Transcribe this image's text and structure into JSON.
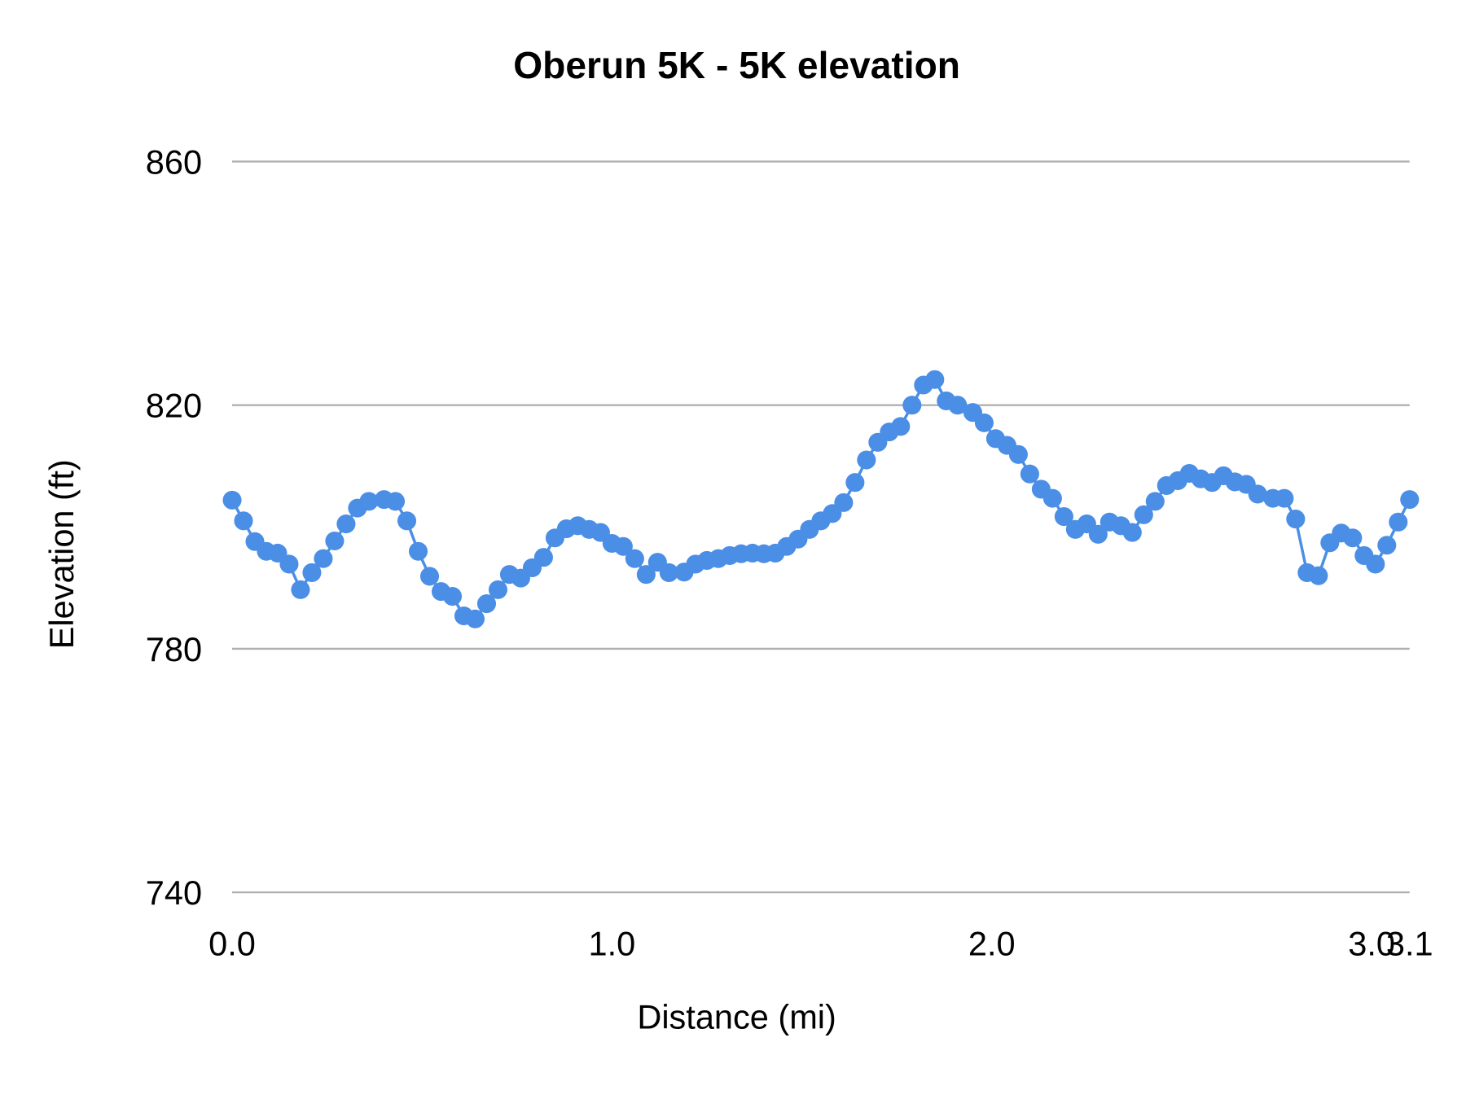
{
  "chart_data": {
    "type": "line",
    "title": "Oberun 5K - 5K elevation",
    "xlabel": "Distance (mi)",
    "ylabel": "Elevation (ft)",
    "xlim": [
      0,
      3.1
    ],
    "ylim": [
      740,
      860
    ],
    "x_ticks": [
      "0.0",
      "1.0",
      "2.0",
      "3.0",
      "3.1"
    ],
    "x_tick_values": [
      0,
      1,
      2,
      3,
      3.1
    ],
    "y_ticks": [
      "740",
      "780",
      "820",
      "860"
    ],
    "y_tick_values": [
      740,
      780,
      820,
      860
    ],
    "grid": "horizontal",
    "legend": "none",
    "color": "#4a8ee6",
    "markers": true,
    "x": [
      0.0,
      0.03,
      0.06,
      0.09,
      0.12,
      0.15,
      0.18,
      0.21,
      0.24,
      0.27,
      0.3,
      0.33,
      0.36,
      0.4,
      0.43,
      0.46,
      0.49,
      0.52,
      0.55,
      0.58,
      0.61,
      0.64,
      0.67,
      0.7,
      0.73,
      0.76,
      0.79,
      0.82,
      0.85,
      0.88,
      0.91,
      0.94,
      0.97,
      1.0,
      1.03,
      1.06,
      1.09,
      1.12,
      1.15,
      1.19,
      1.22,
      1.25,
      1.28,
      1.31,
      1.34,
      1.37,
      1.4,
      1.43,
      1.46,
      1.49,
      1.52,
      1.55,
      1.58,
      1.61,
      1.64,
      1.67,
      1.7,
      1.73,
      1.76,
      1.79,
      1.82,
      1.85,
      1.88,
      1.91,
      1.95,
      1.98,
      2.01,
      2.04,
      2.07,
      2.1,
      2.13,
      2.16,
      2.19,
      2.22,
      2.25,
      2.28,
      2.31,
      2.34,
      2.37,
      2.4,
      2.43,
      2.46,
      2.49,
      2.52,
      2.55,
      2.58,
      2.61,
      2.64,
      2.67,
      2.7,
      2.74,
      2.77,
      2.8,
      2.83,
      2.86,
      2.89,
      2.92,
      2.95,
      2.98,
      3.01,
      3.04,
      3.07,
      3.1
    ],
    "y": [
      804.4,
      801.0,
      797.6,
      796.0,
      795.7,
      793.9,
      789.7,
      792.5,
      794.8,
      797.7,
      800.5,
      803.1,
      804.2,
      804.5,
      804.2,
      801.0,
      796.0,
      791.9,
      789.4,
      788.6,
      785.4,
      784.9,
      787.4,
      789.7,
      792.2,
      791.6,
      793.3,
      795.0,
      798.2,
      799.7,
      800.2,
      799.6,
      799.1,
      797.3,
      796.8,
      794.8,
      792.2,
      794.2,
      792.5,
      792.6,
      793.9,
      794.5,
      794.8,
      795.3,
      795.6,
      795.7,
      795.6,
      795.7,
      796.8,
      798.0,
      799.6,
      801.0,
      802.2,
      804.0,
      807.3,
      811.0,
      813.9,
      815.6,
      816.5,
      820.0,
      823.3,
      824.2,
      820.7,
      820.0,
      818.8,
      817.1,
      814.5,
      813.4,
      811.9,
      808.7,
      806.2,
      804.7,
      801.7,
      799.6,
      800.5,
      798.8,
      800.8,
      800.2,
      799.1,
      802.0,
      804.2,
      806.8,
      807.6,
      808.8,
      807.9,
      807.3,
      808.4,
      807.4,
      807.0,
      805.4,
      804.7,
      804.7,
      801.3,
      792.5,
      792.0,
      797.4,
      799.0,
      798.2,
      795.3,
      793.9,
      797.0,
      800.8,
      804.5
    ]
  }
}
